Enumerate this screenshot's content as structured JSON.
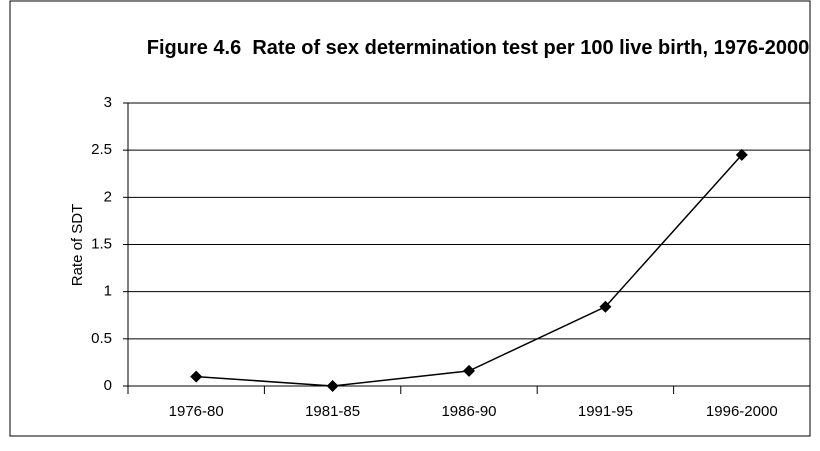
{
  "chart_data": {
    "type": "line",
    "title": "Figure 4.6  Rate of sex determination test per 100 live birth, 1976-2000",
    "y_label": "Rate of SDT",
    "categories": [
      "1976-80",
      "1981-85",
      "1986-90",
      "1991-95",
      "1996-2000"
    ],
    "series": [
      {
        "name": "Rate of SDT",
        "color": "#000000",
        "values": [
          0.1,
          0,
          0.16,
          0.84,
          2.45
        ]
      }
    ],
    "ylim": [
      0,
      3
    ],
    "yticks": [
      0,
      0.5,
      1,
      1.5,
      2,
      2.5,
      3
    ],
    "grid": true
  }
}
